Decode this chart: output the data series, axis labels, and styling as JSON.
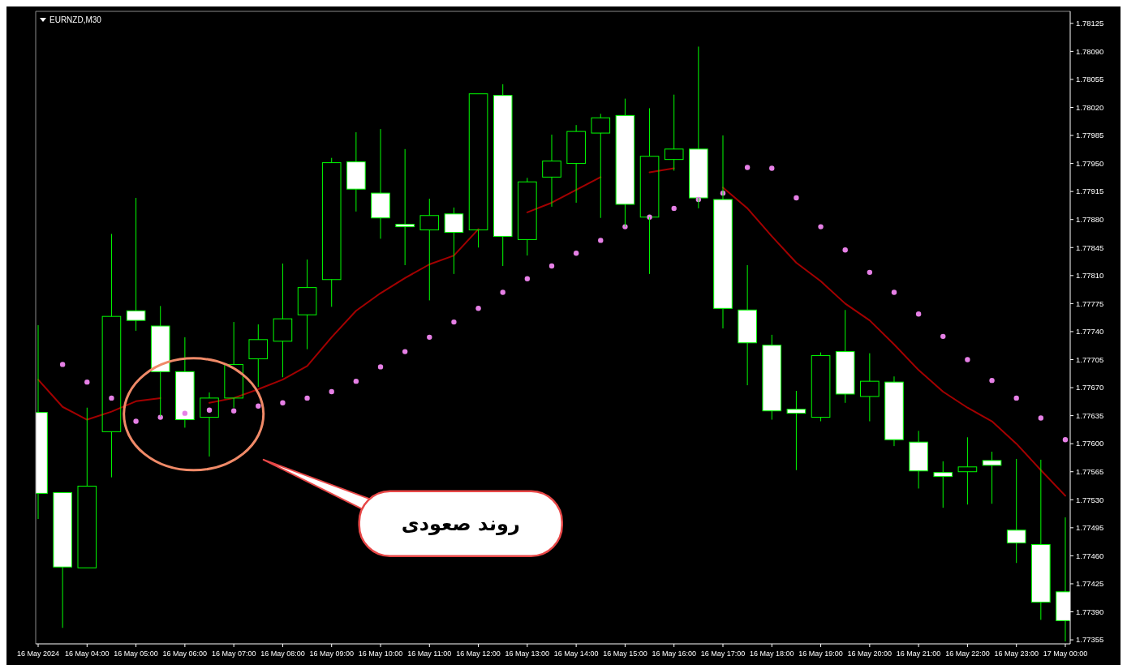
{
  "chart_data": {
    "type": "candlestick",
    "title": "EURNZD,M30",
    "x": [
      "2024-05-16T03:00",
      "2024-05-16T03:30",
      "2024-05-16T04:00",
      "2024-05-16T04:30",
      "2024-05-16T05:00",
      "2024-05-16T05:30",
      "2024-05-16T06:00",
      "2024-05-16T06:30",
      "2024-05-16T07:00",
      "2024-05-16T07:30",
      "2024-05-16T08:00",
      "2024-05-16T08:30",
      "2024-05-16T09:00",
      "2024-05-16T09:30",
      "2024-05-16T10:00",
      "2024-05-16T10:30",
      "2024-05-16T11:00",
      "2024-05-16T11:30",
      "2024-05-16T12:00",
      "2024-05-16T12:30",
      "2024-05-16T13:00",
      "2024-05-16T13:30",
      "2024-05-16T14:00",
      "2024-05-16T14:30",
      "2024-05-16T15:00",
      "2024-05-16T15:30",
      "2024-05-16T16:00",
      "2024-05-16T16:30",
      "2024-05-16T17:00",
      "2024-05-16T17:30",
      "2024-05-16T18:00",
      "2024-05-16T18:30",
      "2024-05-16T19:00",
      "2024-05-16T19:30",
      "2024-05-16T20:00",
      "2024-05-16T20:30",
      "2024-05-16T21:00",
      "2024-05-16T21:30",
      "2024-05-16T22:00",
      "2024-05-16T22:30",
      "2024-05-16T23:00",
      "2024-05-16T23:30",
      "2024-05-17T00:00"
    ],
    "xlim": [
      "2024-05-16T02:57",
      "2024-05-17T00:06"
    ],
    "xticks": [
      {
        "value": "2024-05-16T03:00",
        "label": "16 May 2024"
      },
      {
        "value": "2024-05-16T04:00",
        "label": "16 May 04:00"
      },
      {
        "value": "2024-05-16T05:00",
        "label": "16 May 05:00"
      },
      {
        "value": "2024-05-16T06:00",
        "label": "16 May 06:00"
      },
      {
        "value": "2024-05-16T07:00",
        "label": "16 May 07:00"
      },
      {
        "value": "2024-05-16T08:00",
        "label": "16 May 08:00"
      },
      {
        "value": "2024-05-16T09:00",
        "label": "16 May 09:00"
      },
      {
        "value": "2024-05-16T10:00",
        "label": "16 May 10:00"
      },
      {
        "value": "2024-05-16T11:00",
        "label": "16 May 11:00"
      },
      {
        "value": "2024-05-16T12:00",
        "label": "16 May 12:00"
      },
      {
        "value": "2024-05-16T13:00",
        "label": "16 May 13:00"
      },
      {
        "value": "2024-05-16T14:00",
        "label": "16 May 14:00"
      },
      {
        "value": "2024-05-16T15:00",
        "label": "16 May 15:00"
      },
      {
        "value": "2024-05-16T16:00",
        "label": "16 May 16:00"
      },
      {
        "value": "2024-05-16T17:00",
        "label": "16 May 17:00"
      },
      {
        "value": "2024-05-16T18:00",
        "label": "16 May 18:00"
      },
      {
        "value": "2024-05-16T19:00",
        "label": "16 May 19:00"
      },
      {
        "value": "2024-05-16T20:00",
        "label": "16 May 20:00"
      },
      {
        "value": "2024-05-16T21:00",
        "label": "16 May 21:00"
      },
      {
        "value": "2024-05-16T22:00",
        "label": "16 May 22:00"
      },
      {
        "value": "2024-05-16T23:00",
        "label": "16 May 23:00"
      },
      {
        "value": "2024-05-17T00:00",
        "label": "17 May 00:00"
      }
    ],
    "ylim": [
      1.7735,
      1.7814
    ],
    "yticks": [
      1.77355,
      {
        "value": 1.7739,
        "label": "1.77390"
      },
      1.77425,
      {
        "value": 1.7746,
        "label": "1.77460"
      },
      1.77495,
      {
        "value": 1.7753,
        "label": "1.77530"
      },
      1.77565,
      {
        "value": 1.776,
        "label": "1.77600"
      },
      1.77635,
      {
        "value": 1.7767,
        "label": "1.77670"
      },
      1.77705,
      {
        "value": 1.7774,
        "label": "1.77740"
      },
      1.77775,
      {
        "value": 1.7781,
        "label": "1.77810"
      },
      1.77845,
      {
        "value": 1.7788,
        "label": "1.77880"
      },
      1.77915,
      {
        "value": 1.7795,
        "label": "1.77950"
      },
      1.77985,
      {
        "value": 1.7802,
        "label": "1.78020"
      },
      1.78055,
      {
        "value": 1.7809,
        "label": "1.78090"
      },
      1.78125
    ],
    "series": [
      {
        "type": "line",
        "color": "#a30000",
        "values": [
          1.7768,
          1.77646,
          1.7763,
          1.7764,
          1.77653,
          1.77657,
          null,
          1.77651,
          1.77657,
          1.77668,
          1.7768,
          1.77697,
          1.77733,
          1.77766,
          1.77788,
          1.77807,
          1.77824,
          1.77835,
          1.77868,
          null,
          1.77889,
          1.77901,
          1.77917,
          1.77933,
          null,
          1.77939,
          1.77944,
          null,
          1.7792,
          1.77894,
          1.77859,
          1.77826,
          1.77803,
          1.77775,
          1.77754,
          1.77724,
          1.77692,
          1.77665,
          1.77645,
          1.77628,
          1.776,
          1.77567,
          1.77535
        ]
      },
      {
        "type": "scatter",
        "color": "#e680e6",
        "marker": "circle",
        "values": [
          null,
          1.77699,
          1.77677,
          1.77657,
          1.77628,
          1.77633,
          1.77638,
          1.77642,
          1.77641,
          1.77647,
          1.77651,
          1.77657,
          1.77665,
          1.77678,
          1.77696,
          1.77715,
          1.77733,
          1.77752,
          1.77769,
          1.77789,
          1.77806,
          1.77822,
          1.77838,
          1.77854,
          1.77871,
          1.77883,
          1.77894,
          1.77905,
          1.77913,
          1.77945,
          1.77944,
          1.77907,
          1.77871,
          1.77842,
          1.77814,
          1.77789,
          1.77762,
          1.77734,
          1.77705,
          1.77679,
          1.77657,
          1.77632,
          1.77605
        ]
      },
      {
        "type": "candlestick",
        "color": "#00ff00",
        "colors": [
          "#ffffff",
          "#ffffff",
          null,
          null,
          "#ffffff",
          "#ffffff",
          "#ffffff",
          null,
          null,
          null,
          null,
          null,
          null,
          "#ffffff",
          "#ffffff",
          "#ffffff",
          null,
          "#ffffff",
          null,
          "#ffffff",
          null,
          null,
          null,
          null,
          "#ffffff",
          null,
          null,
          "#ffffff",
          "#ffffff",
          "#ffffff",
          "#ffffff",
          "#ffffff",
          null,
          "#ffffff",
          null,
          "#ffffff",
          "#ffffff",
          "#ffffff",
          null,
          "#ffffff",
          "#ffffff",
          "#ffffff",
          "#ffffff"
        ],
        "ohlc": [
          [
            1.77639,
            1.77748,
            1.77506,
            1.77538
          ],
          [
            1.77539,
            1.77539,
            1.7737,
            1.77446
          ],
          [
            1.77445,
            1.77645,
            1.77445,
            1.77547
          ],
          [
            1.77615,
            1.77862,
            1.77558,
            1.77759
          ],
          [
            1.77766,
            1.77907,
            1.77741,
            1.77754
          ],
          [
            1.77747,
            1.77772,
            1.77634,
            1.7769
          ],
          [
            1.7769,
            1.77733,
            1.7762,
            1.7763
          ],
          [
            1.77633,
            1.77664,
            1.77584,
            1.77657
          ],
          [
            1.77657,
            1.77752,
            1.77645,
            1.77699
          ],
          [
            1.77706,
            1.77749,
            1.77671,
            1.7773
          ],
          [
            1.77728,
            1.77825,
            1.77683,
            1.77756
          ],
          [
            1.77761,
            1.7783,
            1.77718,
            1.77795
          ],
          [
            1.77805,
            1.77957,
            1.77771,
            1.77951
          ],
          [
            1.77952,
            1.77989,
            1.7789,
            1.77918
          ],
          [
            1.77913,
            1.77993,
            1.77856,
            1.77882
          ],
          [
            1.77874,
            1.77968,
            1.77823,
            1.77871
          ],
          [
            1.77867,
            1.77906,
            1.77779,
            1.77885
          ],
          [
            1.77887,
            1.77895,
            1.77812,
            1.77864
          ],
          [
            1.77867,
            1.78037,
            1.77845,
            1.78037
          ],
          [
            1.78035,
            1.78049,
            1.77822,
            1.77859
          ],
          [
            1.77855,
            1.77932,
            1.77835,
            1.77927
          ],
          [
            1.77933,
            1.77986,
            1.77896,
            1.77953
          ],
          [
            1.7795,
            1.77998,
            1.77901,
            1.7799
          ],
          [
            1.77988,
            1.78012,
            1.77882,
            1.78007
          ],
          [
            1.7801,
            1.78031,
            1.77871,
            1.77899
          ],
          [
            1.77883,
            1.78019,
            1.77812,
            1.77959
          ],
          [
            1.77955,
            1.78036,
            1.77941,
            1.77968
          ],
          [
            1.77968,
            1.78096,
            1.77894,
            1.77907
          ],
          [
            1.77905,
            1.77985,
            1.77744,
            1.77769
          ],
          [
            1.77767,
            1.77823,
            1.77673,
            1.77726
          ],
          [
            1.77723,
            1.77736,
            1.7763,
            1.77641
          ],
          [
            1.77643,
            1.77666,
            1.77567,
            1.77638
          ],
          [
            1.77633,
            1.77714,
            1.77628,
            1.7771
          ],
          [
            1.77715,
            1.77767,
            1.77651,
            1.77662
          ],
          [
            1.77659,
            1.77713,
            1.77628,
            1.77678
          ],
          [
            1.77677,
            1.77684,
            1.77597,
            1.77605
          ],
          [
            1.77602,
            1.77616,
            1.77544,
            1.77566
          ],
          [
            1.77564,
            1.77578,
            1.7752,
            1.77559
          ],
          [
            1.77565,
            1.77608,
            1.77524,
            1.77571
          ],
          [
            1.77579,
            1.7759,
            1.77525,
            1.77573
          ],
          [
            1.77492,
            1.77581,
            1.77451,
            1.77476
          ],
          [
            1.77474,
            1.7758,
            1.7738,
            1.77402
          ],
          [
            1.77415,
            1.77508,
            1.77353,
            1.77379
          ]
        ]
      }
    ],
    "annotations": [
      "روند صعودی"
    ]
  }
}
